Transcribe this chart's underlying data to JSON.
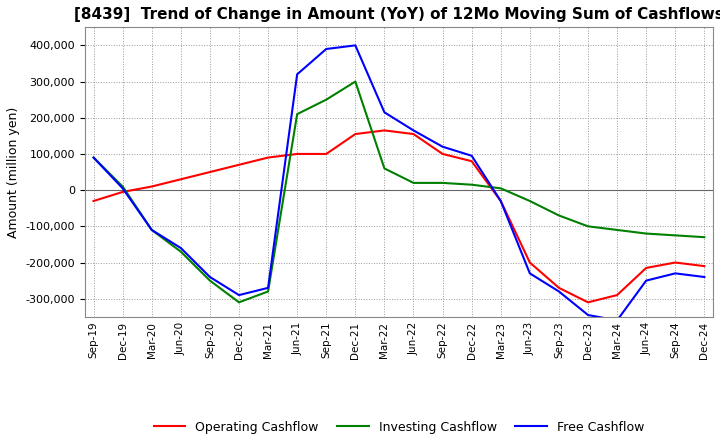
{
  "title": "[8439]  Trend of Change in Amount (YoY) of 12Mo Moving Sum of Cashflows",
  "ylabel": "Amount (million yen)",
  "background_color": "#ffffff",
  "grid_color": "#aaaaaa",
  "title_fontsize": 11,
  "axis_fontsize": 9,
  "tick_labels": [
    "Sep-19",
    "Dec-19",
    "Mar-20",
    "Jun-20",
    "Sep-20",
    "Dec-20",
    "Mar-21",
    "Jun-21",
    "Sep-21",
    "Dec-21",
    "Mar-22",
    "Jun-22",
    "Sep-22",
    "Dec-22",
    "Mar-23",
    "Jun-23",
    "Sep-23",
    "Dec-23",
    "Mar-24",
    "Jun-24",
    "Sep-24",
    "Dec-24"
  ],
  "operating": [
    -30000,
    -5000,
    10000,
    30000,
    50000,
    70000,
    90000,
    100000,
    100000,
    155000,
    165000,
    155000,
    100000,
    80000,
    -30000,
    -200000,
    -270000,
    -310000,
    -290000,
    -215000,
    -200000,
    -210000
  ],
  "investing": [
    90000,
    10000,
    -110000,
    -170000,
    -250000,
    -310000,
    -280000,
    210000,
    250000,
    300000,
    60000,
    20000,
    20000,
    15000,
    5000,
    -30000,
    -70000,
    -100000,
    -110000,
    -120000,
    -125000,
    -130000
  ],
  "free": [
    90000,
    5000,
    -110000,
    -160000,
    -240000,
    -290000,
    -270000,
    320000,
    390000,
    400000,
    215000,
    165000,
    120000,
    95000,
    -30000,
    -230000,
    -280000,
    -345000,
    -360000,
    -250000,
    -230000,
    -240000
  ],
  "ylim": [
    -350000,
    450000
  ],
  "yticks": [
    -300000,
    -200000,
    -100000,
    0,
    100000,
    200000,
    300000,
    400000
  ],
  "operating_color": "#ff0000",
  "investing_color": "#008000",
  "free_color": "#0000ff",
  "legend_labels": [
    "Operating Cashflow",
    "Investing Cashflow",
    "Free Cashflow"
  ]
}
